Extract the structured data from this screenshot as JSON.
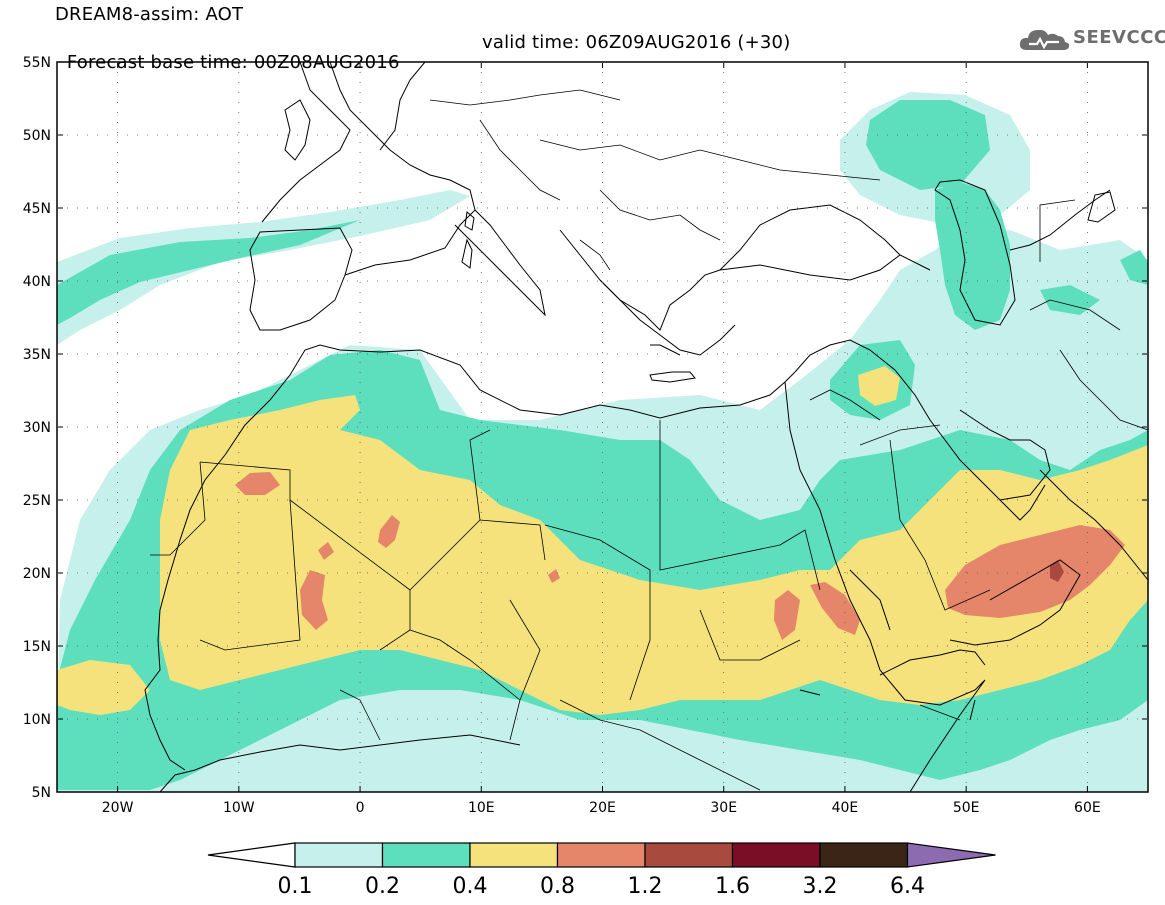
{
  "header": {
    "line1": "DREAM8-assim: AOT",
    "line2_base": "Forecast base time: 00Z08AUG2016",
    "line2_valid": "valid time: 06Z09AUG2016 (+30)",
    "logo_text": "SEEVCCC",
    "logo_icon": "cloud-icon"
  },
  "map": {
    "lon_range": [
      -25,
      65
    ],
    "lat_range": [
      5,
      55
    ],
    "lat_ticks": [
      {
        "value": 55,
        "label": "55N"
      },
      {
        "value": 50,
        "label": "50N"
      },
      {
        "value": 45,
        "label": "45N"
      },
      {
        "value": 40,
        "label": "40N"
      },
      {
        "value": 35,
        "label": "35N"
      },
      {
        "value": 30,
        "label": "30N"
      },
      {
        "value": 25,
        "label": "25N"
      },
      {
        "value": 20,
        "label": "20N"
      },
      {
        "value": 15,
        "label": "15N"
      },
      {
        "value": 10,
        "label": "10N"
      },
      {
        "value": 5,
        "label": "5N"
      }
    ],
    "lon_ticks": [
      {
        "value": -20,
        "label": "20W"
      },
      {
        "value": -10,
        "label": "10W"
      },
      {
        "value": 0,
        "label": "0"
      },
      {
        "value": 10,
        "label": "10E"
      },
      {
        "value": 20,
        "label": "20E"
      },
      {
        "value": 30,
        "label": "30E"
      },
      {
        "value": 40,
        "label": "40E"
      },
      {
        "value": 50,
        "label": "50E"
      },
      {
        "value": 60,
        "label": "60E"
      }
    ]
  },
  "colorbar": {
    "labels": [
      "0.1",
      "0.2",
      "0.4",
      "0.8",
      "1.2",
      "1.6",
      "3.2",
      "6.4"
    ],
    "colors": [
      "#c6f0eb",
      "#5ddfbd",
      "#f5e27c",
      "#e5866a",
      "#a84b3e",
      "#7a0e26",
      "#3b2516",
      "#8d6bb0"
    ],
    "low_end_color": "#ffffff"
  },
  "colors": {
    "c1": "#c6f0eb",
    "c2": "#5ddfbd",
    "c3": "#f5e27c",
    "c4": "#e5866a",
    "c5": "#a84b3e"
  }
}
